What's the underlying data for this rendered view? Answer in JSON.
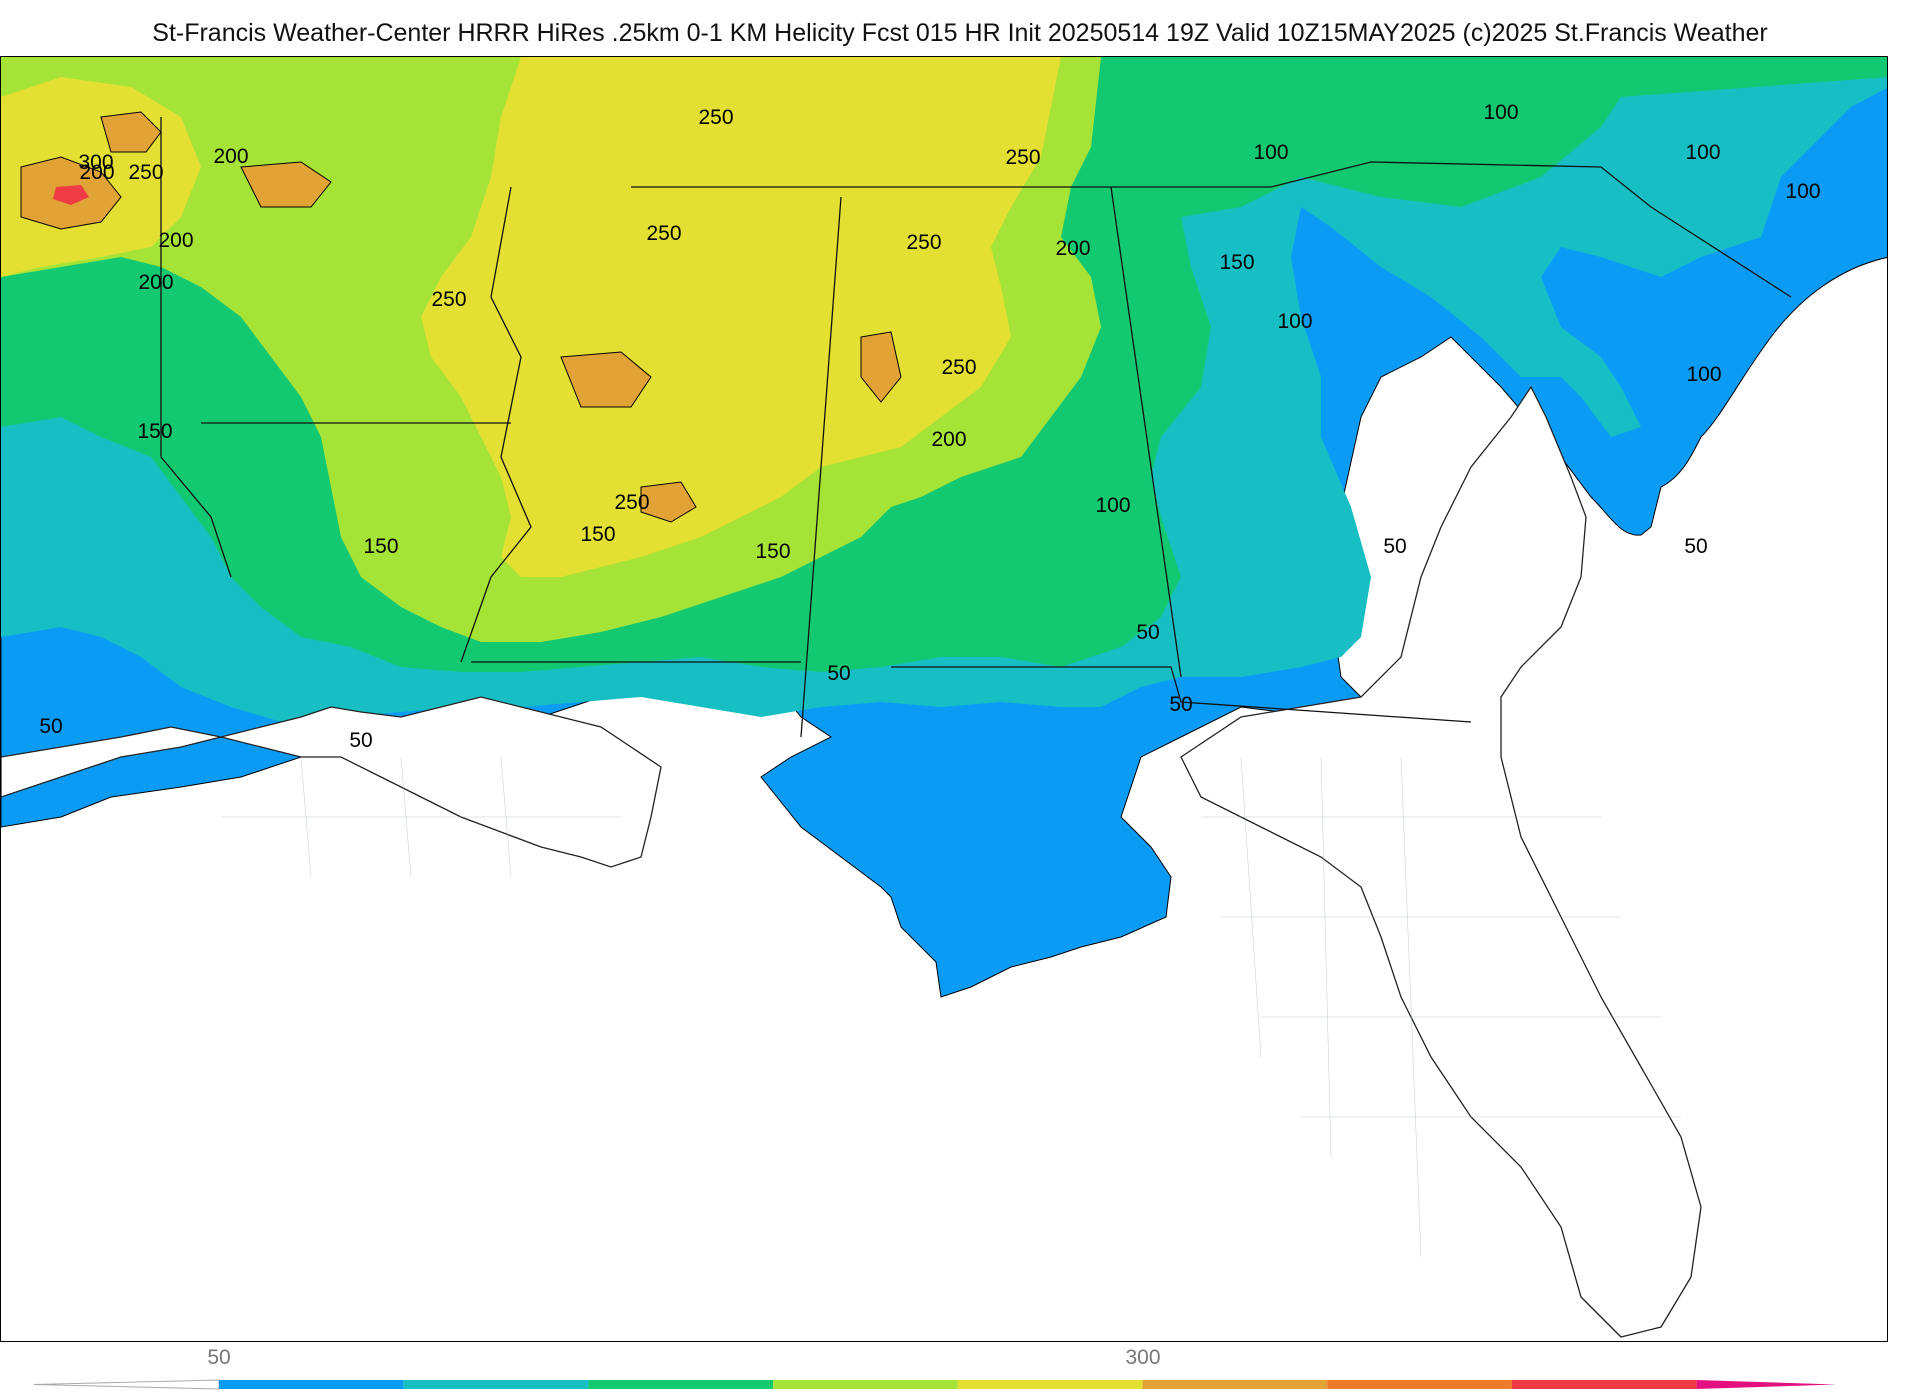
{
  "header": {
    "title": "St-Francis Weather-Center HRRR HiRes .25km 0-1 KM Helicity Fcst 015 HR Init 20250514 19Z  Valid 10Z15MAY2025    (c)2025 St.Francis Weather"
  },
  "map": {
    "field": "0-1 KM Helicity",
    "contour_labels": [
      {
        "text": "300",
        "shade": "orange"
      },
      {
        "text": "250",
        "shade": "yellow"
      },
      {
        "text": "200",
        "shade": "lightgreen"
      },
      {
        "text": "200",
        "shade": "lightgreen"
      },
      {
        "text": "200",
        "shade": "lightgreen"
      },
      {
        "text": "250",
        "shade": "yellow"
      },
      {
        "text": "250",
        "shade": "yellow"
      },
      {
        "text": "250",
        "shade": "yellow"
      },
      {
        "text": "250",
        "shade": "yellow"
      },
      {
        "text": "250",
        "shade": "yellow"
      },
      {
        "text": "250",
        "shade": "yellow"
      },
      {
        "text": "250",
        "shade": "yellow"
      },
      {
        "text": "200",
        "shade": "lightgreen"
      },
      {
        "text": "200",
        "shade": "lightgreen"
      },
      {
        "text": "200",
        "shade": "lightgreen"
      },
      {
        "text": "150",
        "shade": "green"
      },
      {
        "text": "150",
        "shade": "green"
      },
      {
        "text": "150",
        "shade": "green"
      },
      {
        "text": "150",
        "shade": "green"
      },
      {
        "text": "150",
        "shade": "green"
      },
      {
        "text": "100",
        "shade": "teal"
      },
      {
        "text": "100",
        "shade": "teal"
      },
      {
        "text": "100",
        "shade": "teal"
      },
      {
        "text": "100",
        "shade": "teal"
      },
      {
        "text": "100",
        "shade": "teal"
      },
      {
        "text": "100",
        "shade": "teal"
      },
      {
        "text": "100",
        "shade": "teal"
      },
      {
        "text": "50",
        "shade": "blue"
      },
      {
        "text": "50",
        "shade": "blue"
      },
      {
        "text": "50",
        "shade": "blue"
      },
      {
        "text": "50",
        "shade": "blue"
      },
      {
        "text": "50",
        "shade": "blue"
      },
      {
        "text": "50",
        "shade": "blue"
      },
      {
        "text": "50",
        "shade": "blue"
      }
    ]
  },
  "colorbar": {
    "tick_labels": [
      "50",
      "300"
    ],
    "colors": [
      "#0a9cf5",
      "#17bfc4",
      "#12c871",
      "#a6e337",
      "#e4df33",
      "#e2a336",
      "#ec7b2a",
      "#ef3b43",
      "#e5107f"
    ]
  }
}
